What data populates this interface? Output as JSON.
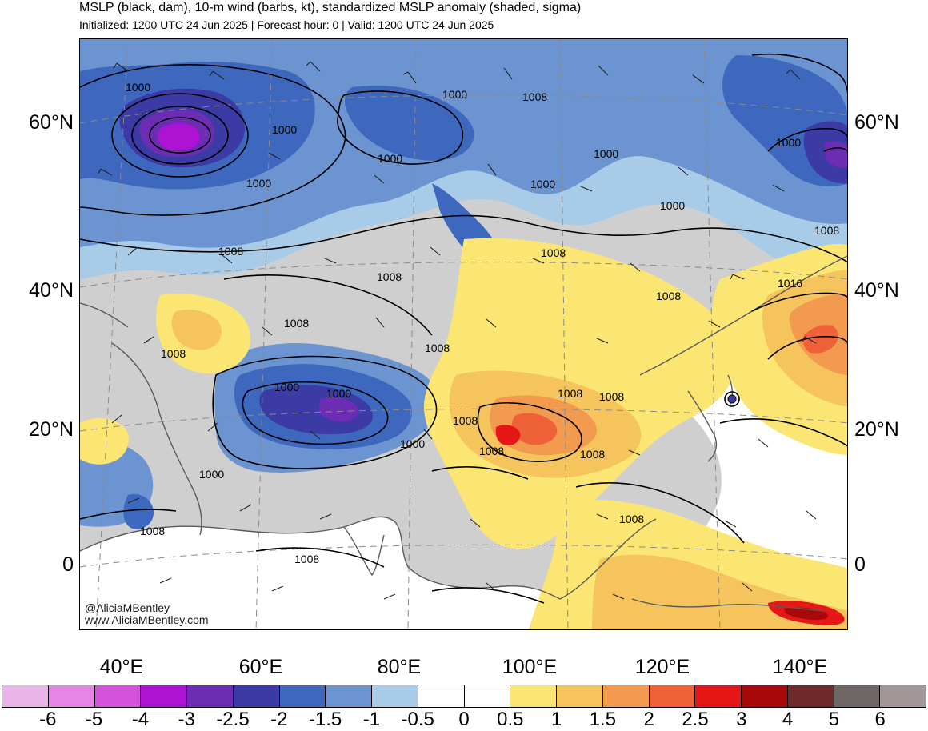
{
  "header": {
    "title": "MSLP (black, dam), 10-m wind (barbs, kt), standardized MSLP anomaly (shaded, sigma)",
    "subtitle": "Initialized: 1200 UTC 24 Jun 2025 | Forecast hour: 0 | Valid: 1200 UTC 24 Jun 2025"
  },
  "axes": {
    "lat_left": [
      "60°N",
      "40°N",
      "20°N",
      "0"
    ],
    "lat_right": [
      "60°N",
      "40°N",
      "20°N",
      "0"
    ],
    "lon": [
      "40°E",
      "60°E",
      "80°E",
      "100°E",
      "120°E",
      "140°E"
    ]
  },
  "contour_labels": [
    {
      "name": "contour-label",
      "text": "1000"
    },
    {
      "name": "contour-label",
      "text": "1000"
    },
    {
      "name": "contour-label",
      "text": "1000"
    },
    {
      "name": "contour-label",
      "text": "1000"
    },
    {
      "name": "contour-label",
      "text": "1008"
    },
    {
      "name": "contour-label",
      "text": "1000"
    },
    {
      "name": "contour-label",
      "text": "1000"
    },
    {
      "name": "contour-label",
      "text": "1000"
    },
    {
      "name": "contour-label",
      "text": "1000"
    },
    {
      "name": "contour-label",
      "text": "1000"
    },
    {
      "name": "contour-label",
      "text": "1008"
    },
    {
      "name": "contour-label",
      "text": "1008"
    },
    {
      "name": "contour-label",
      "text": "1008"
    },
    {
      "name": "contour-label",
      "text": "1008"
    },
    {
      "name": "contour-label",
      "text": "1016"
    },
    {
      "name": "contour-label",
      "text": "1008"
    },
    {
      "name": "contour-label",
      "text": "1008"
    },
    {
      "name": "contour-label",
      "text": "1008"
    },
    {
      "name": "contour-label",
      "text": "1000"
    },
    {
      "name": "contour-label",
      "text": "1000"
    },
    {
      "name": "contour-label",
      "text": "1008"
    },
    {
      "name": "contour-label",
      "text": "1008"
    },
    {
      "name": "contour-label",
      "text": "1008"
    },
    {
      "name": "contour-label",
      "text": "1000"
    },
    {
      "name": "contour-label",
      "text": "1008"
    },
    {
      "name": "contour-label",
      "text": "1008"
    },
    {
      "name": "contour-label",
      "text": "1000"
    },
    {
      "name": "contour-label",
      "text": "1008"
    },
    {
      "name": "contour-label",
      "text": "1008"
    },
    {
      "name": "contour-label",
      "text": "1008"
    },
    {
      "name": "contour-label",
      "text": "1008"
    }
  ],
  "credits": {
    "handle": "@AliciaMBentley",
    "site": "www.AliciaMBentley.com"
  },
  "colorbar": {
    "colors": [
      "#e9b5e8",
      "#e685e6",
      "#d452dc",
      "#ad13d3",
      "#6c2cb4",
      "#3c3aa4",
      "#3d68bd",
      "#6c94d0",
      "#a8cbe8",
      "#ffffff",
      "#ffffff",
      "#fbe573",
      "#f5c45c",
      "#f29a4d",
      "#ef6238",
      "#e51717",
      "#a80a0a",
      "#6e2a2a",
      "#6f6765",
      "#a39897"
    ],
    "ticks": [
      "-6",
      "-5",
      "-4",
      "-3",
      "-2.5",
      "-2",
      "-1.5",
      "-1",
      "-0.5",
      "0",
      "0.5",
      "1",
      "1.5",
      "2",
      "2.5",
      "3",
      "4",
      "5",
      "6"
    ]
  },
  "palette": {
    "land_neutral": "#cfcfcf",
    "ocean_neutral": "#ffffff",
    "contour": "#000000",
    "coastline": "#5a5a5a",
    "gridline": "#8a8a8a"
  }
}
